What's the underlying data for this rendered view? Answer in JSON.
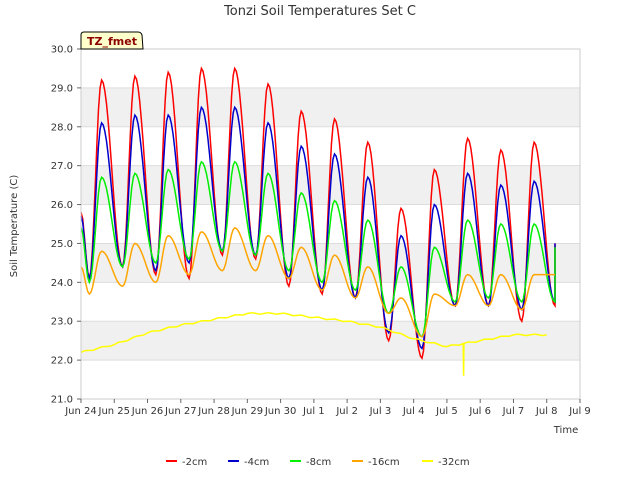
{
  "chart_data": {
    "type": "line",
    "title": "Tonzi Soil Temperatures Set C",
    "xlabel": "Time",
    "ylabel": "Soil Temperature (C)",
    "ylim": [
      21.0,
      30.0
    ],
    "xlim_days": [
      "Jun 24",
      "Jul 9"
    ],
    "site_label": "TZ_fmet",
    "grid": "horizontal bands",
    "legend_position": "bottom",
    "x_ticks": [
      "Jun 24",
      "Jun 25",
      "Jun 26",
      "Jun 27",
      "Jun 28",
      "Jun 29",
      "Jun 30",
      "Jul 1",
      "Jul 2",
      "Jul 3",
      "Jul 4",
      "Jul 5",
      "Jul 6",
      "Jul 7",
      "Jul 8",
      "Jul 9"
    ],
    "y_ticks": [
      "21.0",
      "22.0",
      "23.0",
      "24.0",
      "25.0",
      "26.0",
      "27.0",
      "28.0",
      "29.0",
      "30.0"
    ],
    "series": [
      {
        "name": "-2cm",
        "color": "#ff0000",
        "daily_min": [
          24.1,
          24.4,
          24.2,
          24.1,
          24.7,
          24.6,
          23.9,
          23.7,
          23.6,
          22.5,
          22.05,
          23.4,
          23.4,
          23.0,
          23.4
        ],
        "daily_max": [
          29.2,
          29.3,
          29.4,
          29.5,
          29.5,
          29.1,
          28.4,
          28.2,
          27.6,
          25.9,
          26.9,
          27.7,
          27.4,
          27.6
        ],
        "start": 25.8,
        "end": 25.0
      },
      {
        "name": "-4cm",
        "color": "#0000cc",
        "daily_min": [
          24.1,
          24.4,
          24.3,
          24.5,
          24.8,
          24.7,
          24.1,
          23.8,
          23.6,
          22.7,
          22.3,
          23.4,
          23.4,
          23.3,
          23.5
        ],
        "daily_max": [
          28.1,
          28.3,
          28.3,
          28.5,
          28.5,
          28.1,
          27.5,
          27.3,
          26.7,
          25.2,
          26.0,
          26.8,
          26.5,
          26.6
        ],
        "start": 25.7,
        "end": 25.0
      },
      {
        "name": "-8cm",
        "color": "#00ee00",
        "daily_min": [
          24.0,
          24.4,
          24.5,
          24.6,
          24.8,
          24.7,
          24.3,
          24.0,
          23.8,
          23.2,
          22.6,
          23.5,
          23.6,
          23.5,
          23.5
        ],
        "daily_max": [
          26.7,
          26.8,
          26.9,
          27.1,
          27.1,
          26.8,
          26.3,
          26.1,
          25.6,
          24.4,
          24.9,
          25.6,
          25.5,
          25.5
        ],
        "start": 25.4,
        "end": 24.9
      },
      {
        "name": "-16cm",
        "color": "#ffa500",
        "daily_min": [
          23.7,
          23.9,
          24.0,
          24.2,
          24.3,
          24.3,
          24.1,
          23.8,
          23.6,
          23.2,
          22.6,
          23.4,
          23.4,
          23.3
        ],
        "daily_max": [
          24.8,
          25.0,
          25.2,
          25.3,
          25.4,
          25.2,
          24.9,
          24.7,
          24.4,
          23.6,
          23.7,
          24.2,
          24.2,
          24.2
        ],
        "start": 24.4,
        "end": 24.2
      },
      {
        "name": "-32cm",
        "color": "#ffff00",
        "points": [
          [
            "Jun 24",
            22.2
          ],
          [
            "Jun 25",
            22.4
          ],
          [
            "Jun 26",
            22.7
          ],
          [
            "Jun 27",
            22.9
          ],
          [
            "Jun 28",
            23.05
          ],
          [
            "Jun 29",
            23.2
          ],
          [
            "Jun 30",
            23.2
          ],
          [
            "Jul 1",
            23.1
          ],
          [
            "Jul 2",
            23.0
          ],
          [
            "Jul 3",
            22.85
          ],
          [
            "Jul 4",
            22.55
          ],
          [
            "Jul 5",
            22.35
          ],
          [
            "Jul 6",
            22.5
          ],
          [
            "Jul 7",
            22.65
          ],
          [
            "Jul 8",
            22.65
          ]
        ],
        "spike": [
          "Jul 5",
          21.6
        ]
      }
    ]
  }
}
